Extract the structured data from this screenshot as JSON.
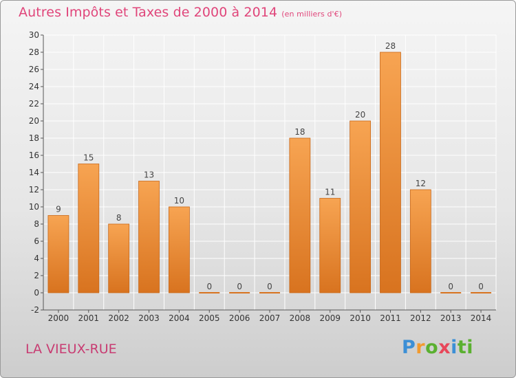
{
  "title": "Autres Impôts et Taxes de 2000 à 2014",
  "subtitle": "(en milliers d'€)",
  "place_name": "LA VIEUX-RUE",
  "logo": [
    "P",
    "r",
    "o",
    "x",
    "i",
    "ti"
  ],
  "colors": {
    "title": "#e0457a",
    "bar_light": "#f7a452",
    "bar_dark": "#d8731f",
    "grid": "#ffffff"
  },
  "chart_data": {
    "type": "bar",
    "categories": [
      "2000",
      "2001",
      "2002",
      "2003",
      "2004",
      "2005",
      "2006",
      "2007",
      "2008",
      "2009",
      "2010",
      "2011",
      "2012",
      "2013",
      "2014"
    ],
    "values": [
      9,
      15,
      8,
      13,
      10,
      0,
      0,
      0,
      18,
      11,
      20,
      28,
      12,
      0,
      0
    ],
    "ylim": [
      -2,
      30
    ],
    "yticks": [
      -2,
      0,
      2,
      4,
      6,
      8,
      10,
      12,
      14,
      16,
      18,
      20,
      22,
      24,
      26,
      28,
      30
    ],
    "grid": true,
    "data_labels": true
  }
}
